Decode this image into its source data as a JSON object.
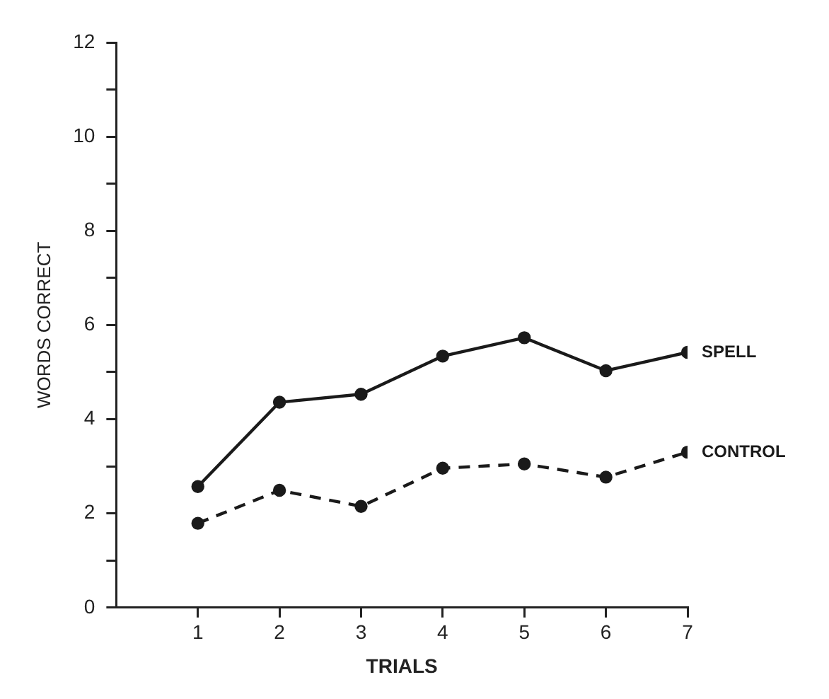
{
  "chart_data": {
    "type": "line",
    "xlabel": "TRIALS",
    "ylabel": "WORDS CORRECT",
    "x": [
      1,
      2,
      3,
      4,
      5,
      6,
      7
    ],
    "series": [
      {
        "name": "SPELL",
        "color": "#1a1a1a",
        "line_style": "solid",
        "values": [
          2.57,
          4.36,
          4.53,
          5.34,
          5.73,
          5.03,
          5.42
        ]
      },
      {
        "name": "CONTROL",
        "color": "#1a1a1a",
        "line_style": "dashed",
        "values": [
          1.79,
          2.49,
          2.15,
          2.96,
          3.05,
          2.77,
          3.3
        ]
      }
    ],
    "xlim": [
      0,
      7
    ],
    "xticks": [
      1,
      2,
      3,
      4,
      5,
      6,
      7
    ],
    "ylim": [
      0,
      12
    ],
    "yticks": [
      0,
      {
        "value": 1,
        "label": null
      },
      2,
      {
        "value": 3,
        "label": null
      },
      4,
      {
        "value": 5,
        "label": null
      },
      6,
      {
        "value": 7,
        "label": null
      },
      8,
      {
        "value": 9,
        "label": null
      },
      10,
      {
        "value": 11,
        "label": null
      },
      12
    ],
    "grid": false,
    "legend": false,
    "marker": "circle"
  }
}
